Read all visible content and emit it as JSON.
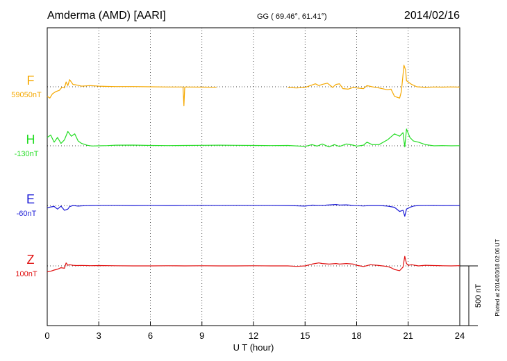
{
  "header": {
    "station": "Amderma (AMD)  [AARI]",
    "coords": "GG ( 69.46°,  61.41°)",
    "date": "2014/02/16"
  },
  "footer": {
    "plotted": "Plotted at 2014/03/18 02:06 UT",
    "scale_label": "500 nT"
  },
  "chart_data": {
    "type": "line",
    "xlabel": "U T (hour)",
    "xlim": [
      0,
      24
    ],
    "xticks": [
      0,
      3,
      6,
      9,
      12,
      15,
      18,
      21,
      24
    ],
    "grid": true,
    "scale_bar_nT": 500,
    "series": [
      {
        "name": "F",
        "baseline": "59050nT",
        "color": "#f5a800",
        "points": [
          [
            0,
            -80
          ],
          [
            0.15,
            -95
          ],
          [
            0.3,
            -60
          ],
          [
            0.5,
            -40
          ],
          [
            0.7,
            -30
          ],
          [
            0.85,
            -5
          ],
          [
            1.0,
            -10
          ],
          [
            1.1,
            40
          ],
          [
            1.2,
            10
          ],
          [
            1.3,
            60
          ],
          [
            1.5,
            20
          ],
          [
            1.7,
            15
          ],
          [
            2.0,
            5
          ],
          [
            2.5,
            10
          ],
          [
            3,
            5
          ],
          [
            3.5,
            3
          ],
          [
            4,
            2
          ],
          [
            5,
            2
          ],
          [
            6,
            0
          ],
          [
            7,
            -2
          ],
          [
            7.9,
            -2
          ],
          [
            7.95,
            -160
          ],
          [
            8.0,
            -2
          ],
          [
            9,
            -3
          ],
          [
            9.85,
            -4
          ],
          null,
          [
            14,
            -6
          ],
          [
            14.5,
            -10
          ],
          [
            15,
            -5
          ],
          [
            15.4,
            15
          ],
          [
            15.6,
            25
          ],
          [
            15.8,
            10
          ],
          [
            16.0,
            20
          ],
          [
            16.3,
            30
          ],
          [
            16.6,
            -5
          ],
          [
            16.8,
            20
          ],
          [
            17.0,
            25
          ],
          [
            17.2,
            -15
          ],
          [
            17.5,
            -20
          ],
          [
            17.8,
            -5
          ],
          [
            18.0,
            -10
          ],
          [
            18.4,
            -15
          ],
          [
            18.6,
            10
          ],
          [
            18.9,
            0
          ],
          [
            19.3,
            -10
          ],
          [
            19.8,
            -25
          ],
          [
            20.0,
            -20
          ],
          [
            20.2,
            -80
          ],
          [
            20.5,
            -95
          ],
          [
            20.6,
            -40
          ],
          [
            20.75,
            180
          ],
          [
            20.85,
            140
          ],
          [
            20.9,
            50
          ],
          [
            21.0,
            40
          ],
          [
            21.2,
            20
          ],
          [
            21.5,
            0
          ],
          [
            22,
            -5
          ],
          [
            22.5,
            -2
          ],
          [
            23,
            -3
          ],
          [
            23.5,
            -1
          ],
          [
            24,
            -3
          ]
        ]
      },
      {
        "name": "H",
        "baseline": "-130nT",
        "color": "#22dd22",
        "points": [
          [
            0,
            70
          ],
          [
            0.2,
            90
          ],
          [
            0.4,
            30
          ],
          [
            0.6,
            70
          ],
          [
            0.8,
            20
          ],
          [
            1.0,
            50
          ],
          [
            1.2,
            120
          ],
          [
            1.4,
            80
          ],
          [
            1.6,
            100
          ],
          [
            1.8,
            40
          ],
          [
            2.0,
            20
          ],
          [
            2.3,
            5
          ],
          [
            2.6,
            -2
          ],
          [
            3,
            0
          ],
          [
            3.5,
            2
          ],
          [
            4,
            5
          ],
          [
            5,
            6
          ],
          [
            6,
            3
          ],
          [
            7,
            2
          ],
          [
            8,
            3
          ],
          [
            9,
            4
          ],
          [
            10,
            5
          ],
          [
            11,
            4
          ],
          [
            12,
            3
          ],
          [
            13,
            2
          ],
          [
            14,
            3
          ],
          [
            15,
            -5
          ],
          [
            15.4,
            10
          ],
          [
            15.7,
            -3
          ],
          [
            16.0,
            15
          ],
          [
            16.4,
            -10
          ],
          [
            16.7,
            10
          ],
          [
            17.0,
            -5
          ],
          [
            17.4,
            15
          ],
          [
            17.8,
            5
          ],
          [
            18.0,
            -3
          ],
          [
            18.4,
            5
          ],
          [
            18.6,
            30
          ],
          [
            18.9,
            10
          ],
          [
            19.3,
            10
          ],
          [
            19.8,
            50
          ],
          [
            20.2,
            100
          ],
          [
            20.5,
            80
          ],
          [
            20.7,
            110
          ],
          [
            20.8,
            -10
          ],
          [
            20.9,
            140
          ],
          [
            21.1,
            70
          ],
          [
            21.3,
            40
          ],
          [
            21.6,
            30
          ],
          [
            22,
            10
          ],
          [
            22.5,
            0
          ],
          [
            23,
            2
          ],
          [
            23.5,
            0
          ],
          [
            24,
            1
          ]
        ]
      },
      {
        "name": "E",
        "baseline": "-60nT",
        "color": "#1a1ad6",
        "points": [
          [
            0,
            -20
          ],
          [
            0.2,
            -12
          ],
          [
            0.4,
            -8
          ],
          [
            0.6,
            -30
          ],
          [
            0.8,
            -5
          ],
          [
            1.0,
            -40
          ],
          [
            1.2,
            -30
          ],
          [
            1.3,
            -10
          ],
          [
            1.5,
            0
          ],
          [
            1.8,
            -5
          ],
          [
            2.0,
            -3
          ],
          [
            2.5,
            0
          ],
          [
            3,
            1
          ],
          [
            4,
            2
          ],
          [
            5,
            0
          ],
          [
            6,
            1
          ],
          [
            7,
            0
          ],
          [
            8,
            1
          ],
          [
            9,
            2
          ],
          [
            10,
            1
          ],
          [
            11,
            2
          ],
          [
            12,
            1
          ],
          [
            13,
            1
          ],
          [
            14,
            0
          ],
          [
            15,
            -5
          ],
          [
            15.4,
            3
          ],
          [
            15.8,
            2
          ],
          [
            16.2,
            3
          ],
          [
            16.8,
            8
          ],
          [
            17.0,
            4
          ],
          [
            17.4,
            5
          ],
          [
            18.0,
            -1
          ],
          [
            18.4,
            -4
          ],
          [
            18.8,
            0
          ],
          [
            19.3,
            0
          ],
          [
            19.8,
            -5
          ],
          [
            20.2,
            -15
          ],
          [
            20.5,
            -50
          ],
          [
            20.7,
            -40
          ],
          [
            20.8,
            -90
          ],
          [
            20.9,
            -30
          ],
          [
            21.1,
            -15
          ],
          [
            21.3,
            -5
          ],
          [
            21.6,
            0
          ],
          [
            22,
            1
          ],
          [
            22.5,
            2
          ],
          [
            23,
            0
          ],
          [
            23.5,
            1
          ],
          [
            24,
            0
          ]
        ]
      },
      {
        "name": "Z",
        "baseline": "100nT",
        "color": "#e01010",
        "points": [
          [
            0,
            -50
          ],
          [
            0.2,
            -45
          ],
          [
            0.4,
            -35
          ],
          [
            0.6,
            -28
          ],
          [
            0.8,
            -15
          ],
          [
            1.0,
            -20
          ],
          [
            1.1,
            25
          ],
          [
            1.2,
            5
          ],
          [
            1.3,
            10
          ],
          [
            1.5,
            5
          ],
          [
            1.7,
            3
          ],
          [
            2.0,
            4
          ],
          [
            2.5,
            2
          ],
          [
            3,
            3
          ],
          [
            4,
            1
          ],
          [
            5,
            0
          ],
          [
            6,
            0
          ],
          [
            7,
            1
          ],
          [
            8,
            0
          ],
          [
            9,
            1
          ],
          [
            10,
            0
          ],
          [
            11,
            0
          ],
          [
            12,
            1
          ],
          [
            13,
            0
          ],
          [
            14,
            0
          ],
          [
            14.5,
            -4
          ],
          [
            15,
            0
          ],
          [
            15.4,
            15
          ],
          [
            15.8,
            25
          ],
          [
            16.0,
            20
          ],
          [
            16.4,
            15
          ],
          [
            16.8,
            20
          ],
          [
            17.0,
            15
          ],
          [
            17.4,
            20
          ],
          [
            17.8,
            15
          ],
          [
            18.0,
            5
          ],
          [
            18.4,
            -5
          ],
          [
            18.8,
            10
          ],
          [
            19.2,
            5
          ],
          [
            19.5,
            0
          ],
          [
            19.8,
            -5
          ],
          [
            20.0,
            -15
          ],
          [
            20.2,
            -30
          ],
          [
            20.5,
            -40
          ],
          [
            20.7,
            -10
          ],
          [
            20.8,
            80
          ],
          [
            20.9,
            20
          ],
          [
            21.0,
            5
          ],
          [
            21.2,
            10
          ],
          [
            21.6,
            0
          ],
          [
            22,
            5
          ],
          [
            22.5,
            3
          ],
          [
            23,
            1
          ],
          [
            23.5,
            0
          ],
          [
            24,
            2
          ]
        ]
      }
    ]
  }
}
